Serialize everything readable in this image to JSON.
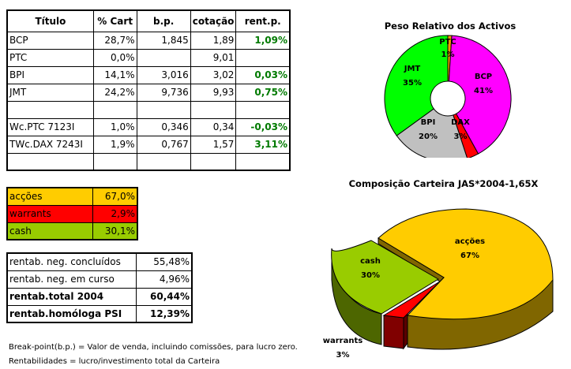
{
  "holdings_table": {
    "headers": [
      "Título",
      "% Cart",
      "b.p.",
      "cotação",
      "rent.p."
    ],
    "rows": [
      {
        "titulo": "BCP",
        "cart": "28,7%",
        "bp": "1,845",
        "cotacao": "1,89",
        "rent": "1,09%"
      },
      {
        "titulo": "PTC",
        "cart": "0,0%",
        "bp": "",
        "cotacao": "9,01",
        "rent": ""
      },
      {
        "titulo": "BPI",
        "cart": "14,1%",
        "bp": "3,016",
        "cotacao": "3,02",
        "rent": "0,03%"
      },
      {
        "titulo": "JMT",
        "cart": "24,2%",
        "bp": "9,736",
        "cotacao": "9,93",
        "rent": "0,75%"
      },
      {
        "titulo": "",
        "cart": "",
        "bp": "",
        "cotacao": "",
        "rent": ""
      },
      {
        "titulo": "Wc.PTC 7123I",
        "cart": "1,0%",
        "bp": "0,346",
        "cotacao": "0,34",
        "rent": "-0,03%"
      },
      {
        "titulo": "TWc.DAX 7243I",
        "cart": "1,9%",
        "bp": "0,767",
        "cotacao": "1,57",
        "rent": "3,11%"
      },
      {
        "titulo": "",
        "cart": "",
        "bp": "",
        "cotacao": "",
        "rent": ""
      }
    ]
  },
  "allocation_table": {
    "rows": [
      {
        "label": "acções",
        "value": "67,0%",
        "color": "#ffcc00"
      },
      {
        "label": "warrants",
        "value": "2,9%",
        "color": "#ff0000"
      },
      {
        "label": "cash",
        "value": "30,1%",
        "color": "#99cc00"
      }
    ]
  },
  "returns_table": {
    "rows": [
      {
        "label": "rentab. neg. concluídos",
        "value": "55,48%",
        "bold": false
      },
      {
        "label": "rentab. neg. em curso",
        "value": "4,96%",
        "bold": false
      },
      {
        "label": "rentab.total 2004",
        "value": "60,44%",
        "bold": true
      },
      {
        "label": "rentab.homóloga PSI",
        "value": "12,39%",
        "bold": true
      }
    ]
  },
  "notes": {
    "line1": "Break-point(b.p.) = Valor de venda, incluindo comissões, para lucro zero.",
    "line2": "Rentabilidades = lucro/investimento total da Carteira"
  },
  "chart_data": [
    {
      "type": "pie",
      "variant": "doughnut",
      "title": "Peso Relativo dos Activos",
      "categories": [
        "PTC",
        "BCP",
        "DAX",
        "BPI",
        "JMT"
      ],
      "values": [
        1,
        41,
        3,
        20,
        35
      ],
      "labels": [
        "1%",
        "41%",
        "3%",
        "20%",
        "35%"
      ],
      "colors": [
        "#ff9900",
        "#ff00ff",
        "#ff0000",
        "#c0c0c0",
        "#00ff00"
      ]
    },
    {
      "type": "pie",
      "variant": "3d-exploded",
      "title": "Composição Carteira JAS*2004-1,65X",
      "categories": [
        "acções",
        "warrants",
        "cash"
      ],
      "values": [
        67,
        3,
        30
      ],
      "labels": [
        "67%",
        "3%",
        "30%"
      ],
      "colors": [
        "#ffcc00",
        "#ff0000",
        "#99cc00"
      ]
    }
  ]
}
